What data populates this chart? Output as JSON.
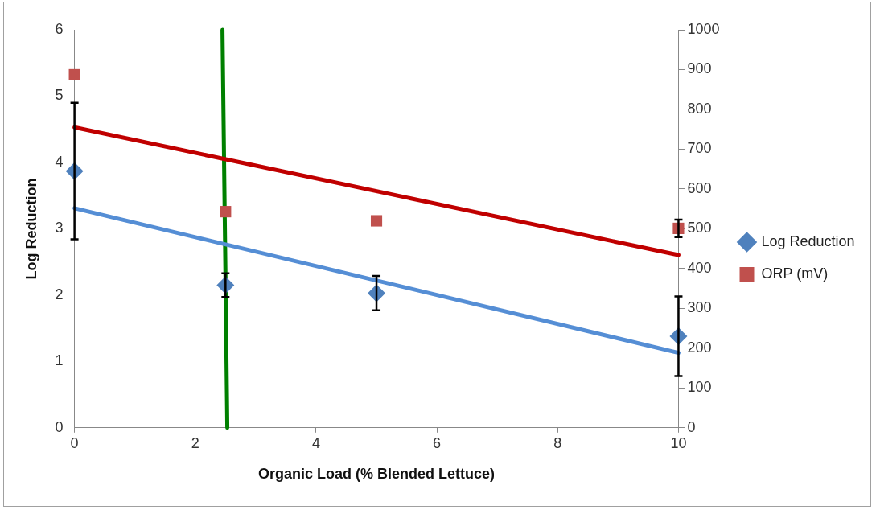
{
  "chart_data": {
    "type": "scatter",
    "xlabel": "Organic Load (% Blended Lettuce)",
    "ylabel": "Log Reduction",
    "xlim": [
      0,
      10
    ],
    "xticks": [
      0,
      2,
      4,
      6,
      8,
      10
    ],
    "ylim": [
      0,
      6
    ],
    "yticks": [
      0,
      1,
      2,
      3,
      4,
      5,
      6
    ],
    "y2lim": [
      0,
      1000
    ],
    "y2ticks": [
      0,
      100,
      200,
      300,
      400,
      500,
      600,
      700,
      800,
      900,
      1000
    ],
    "legend": "right",
    "series": [
      {
        "type": "line",
        "color": "#c00000",
        "x": [
          0,
          10
        ],
        "values": [
          755,
          434
        ],
        "axis": "y2",
        "marker": "none"
      },
      {
        "type": "line",
        "color": "#558ed5",
        "x": [
          0,
          10
        ],
        "values": [
          3.31,
          1.13
        ],
        "marker": "none"
      },
      {
        "type": "line",
        "color": "#008000",
        "x": [
          2.45,
          2.53
        ],
        "values": [
          6,
          0
        ],
        "marker": "none"
      },
      {
        "name": "Log Reduction",
        "type": "scatter",
        "color": "#4f81bd",
        "marker": "diamond",
        "x": [
          0,
          2.5,
          5,
          10
        ],
        "values": [
          3.87,
          2.15,
          2.03,
          1.38
        ],
        "errors": [
          1.03,
          0.18,
          0.26,
          0.6
        ]
      },
      {
        "name": "ORP (mV)",
        "type": "scatter",
        "color": "#c0504d",
        "marker": "square",
        "axis": "y2",
        "x": [
          0,
          2.5,
          5,
          10
        ],
        "values": [
          887,
          543,
          520,
          501
        ],
        "errors": [
          null,
          null,
          null,
          22
        ]
      }
    ]
  }
}
